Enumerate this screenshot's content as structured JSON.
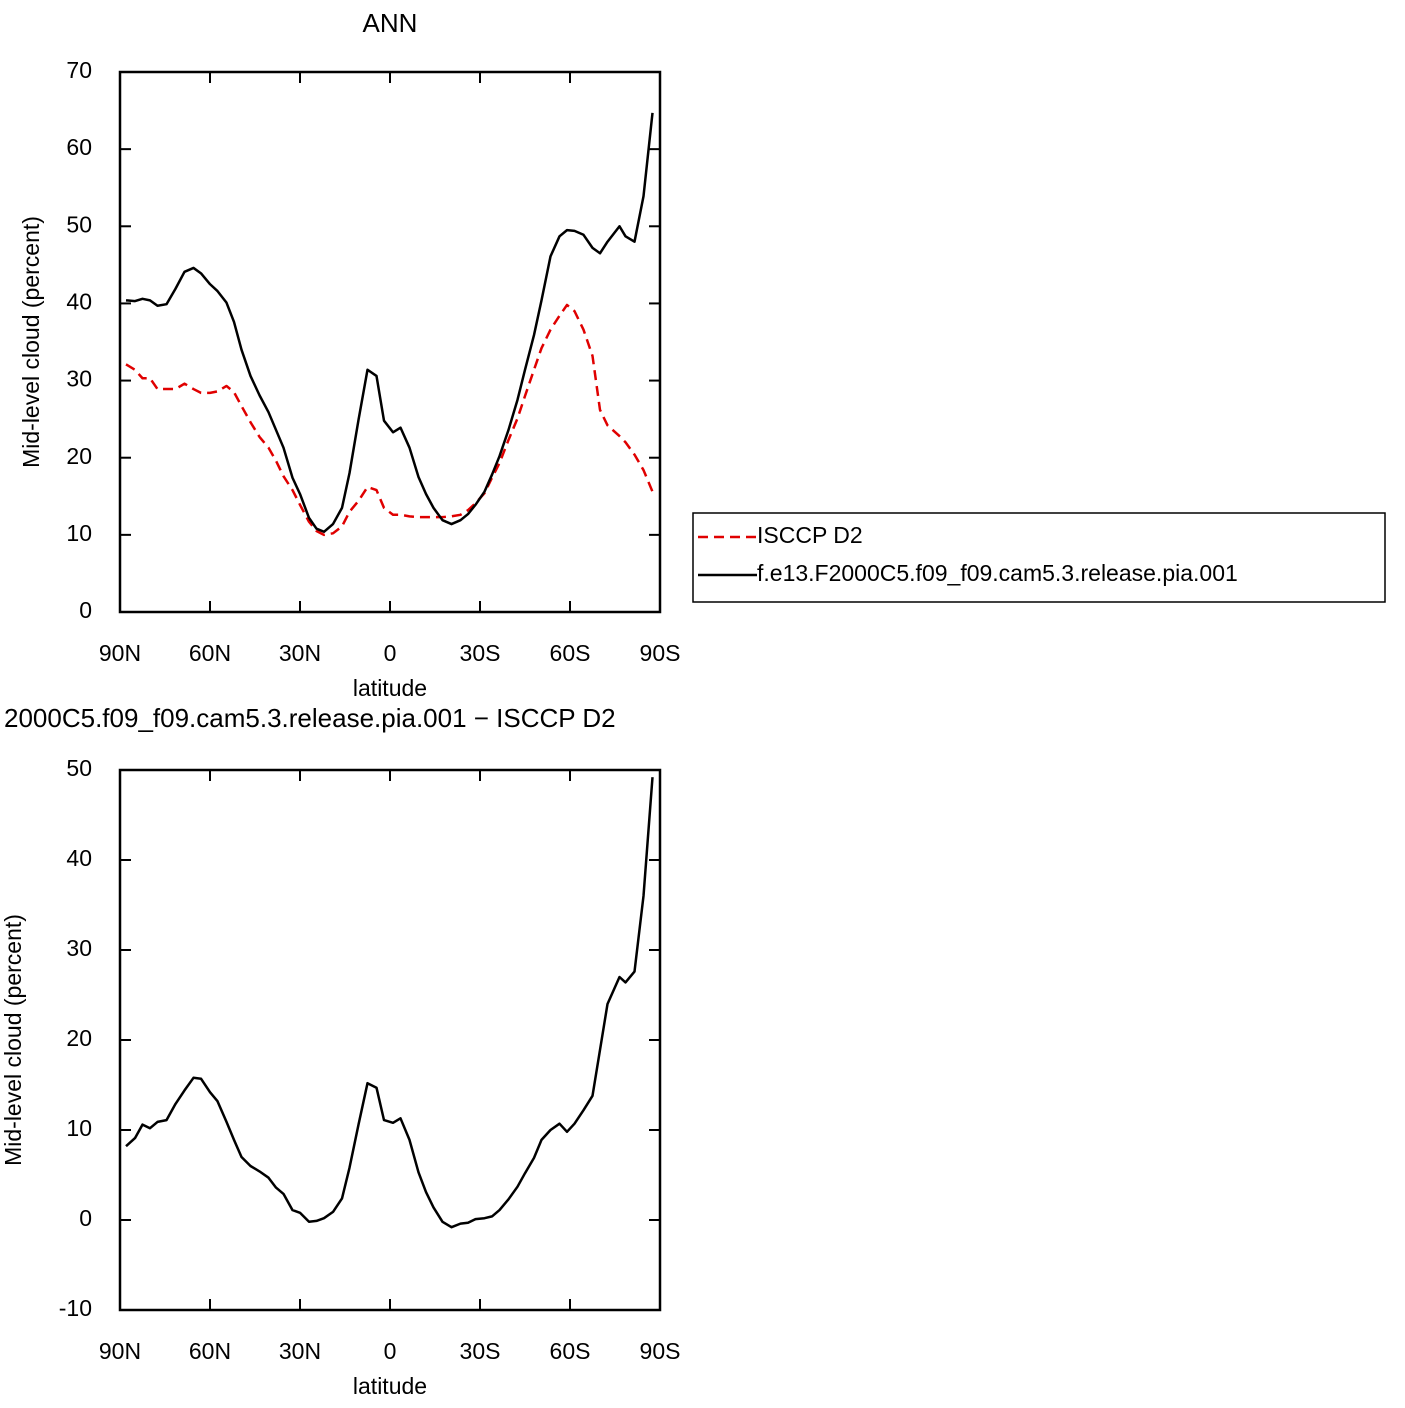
{
  "chart_data": [
    {
      "type": "line",
      "title": "ANN",
      "xlabel": "latitude",
      "ylabel": "Mid-level cloud (percent)",
      "x": [
        88,
        85,
        82.5,
        80,
        77.5,
        74.5,
        71.5,
        68.5,
        65.5,
        63,
        60,
        57.5,
        54.5,
        52,
        49.5,
        46.5,
        43.5,
        40.5,
        38,
        35.5,
        32.5,
        30,
        27,
        24.5,
        22,
        19,
        16,
        13.5,
        10.5,
        7.5,
        4.5,
        2,
        -1,
        -3.5,
        -6.5,
        -9.5,
        -12,
        -14.5,
        -17.5,
        -20.5,
        -23.5,
        -26,
        -28.5,
        -31.5,
        -34,
        -36.5,
        -39.5,
        -42.5,
        -45,
        -48,
        -50.5,
        -53.5,
        -56.5,
        -59,
        -61.5,
        -64.5,
        -67.5,
        -70,
        -72.5,
        -76.5,
        -78.5,
        -81.5,
        -84.5,
        -87.5
      ],
      "series": [
        {
          "name": "ISCCP D2",
          "color": "#e00000",
          "style": "dashed",
          "values": [
            32.1,
            31.4,
            30.3,
            30.3,
            28.9,
            28.9,
            28.9,
            29.6,
            28.9,
            28.4,
            28.4,
            28.6,
            29.3,
            28.5,
            26.7,
            24.6,
            22.7,
            21.3,
            19.6,
            17.6,
            15.8,
            13.9,
            11.7,
            10.5,
            10.0,
            10.2,
            11.1,
            13.0,
            14.4,
            16.2,
            15.8,
            13.5,
            12.6,
            12.6,
            12.4,
            12.3,
            12.3,
            12.3,
            12.3,
            12.4,
            12.6,
            13.2,
            14.1,
            15.4,
            17.4,
            19.3,
            22.3,
            25.1,
            28.0,
            31.4,
            34.2,
            36.6,
            38.4,
            39.8,
            39.0,
            36.6,
            33.2,
            26.2,
            24.2,
            22.8,
            22.0,
            20.4,
            18.4,
            15.6
          ]
        },
        {
          "name": "f.e13.F2000C5.f09_f09.cam5.3.release.pia.001",
          "color": "#000000",
          "style": "solid",
          "values": [
            40.4,
            40.3,
            40.6,
            40.4,
            39.7,
            39.9,
            41.9,
            44.1,
            44.6,
            43.9,
            42.5,
            41.6,
            40.1,
            37.6,
            34.0,
            30.6,
            28.1,
            25.9,
            23.6,
            21.3,
            17.4,
            15.3,
            12.2,
            10.8,
            10.4,
            11.4,
            13.5,
            18.0,
            24.9,
            31.4,
            30.6,
            24.8,
            23.3,
            23.9,
            21.3,
            17.5,
            15.3,
            13.5,
            11.9,
            11.4,
            11.9,
            12.7,
            13.9,
            15.6,
            17.8,
            20.2,
            23.6,
            27.5,
            31.4,
            35.9,
            40.4,
            46.1,
            48.7,
            49.5,
            49.4,
            48.9,
            47.2,
            46.5,
            48.0,
            50.0,
            48.7,
            48.0,
            53.9,
            64.7
          ]
        }
      ],
      "xlim": [
        90,
        -90
      ],
      "xticks": [
        {
          "value": 90,
          "label": "90N"
        },
        {
          "value": 60,
          "label": "60N"
        },
        {
          "value": 30,
          "label": "30N"
        },
        0,
        {
          "value": -30,
          "label": "30S"
        },
        {
          "value": -60,
          "label": "60S"
        },
        {
          "value": -90,
          "label": "90S"
        }
      ],
      "ylim": [
        0,
        70
      ],
      "yticks": [
        0,
        10,
        20,
        30,
        40,
        50,
        60,
        70
      ],
      "legend": "right"
    },
    {
      "type": "line",
      "title": "2000C5.f09_f09.cam5.3.release.pia.001 − ISCCP D2",
      "xlabel": "latitude",
      "ylabel": "Mid-level cloud (percent)",
      "x": [
        88,
        85,
        82.5,
        80,
        77.5,
        74.5,
        71.5,
        68.5,
        65.5,
        63,
        60,
        57.5,
        54.5,
        52,
        49.5,
        46.5,
        43.5,
        40.5,
        38,
        35.5,
        32.5,
        30,
        27,
        24.5,
        22,
        19,
        16,
        13.5,
        10.5,
        7.5,
        4.5,
        2,
        -1,
        -3.5,
        -6.5,
        -9.5,
        -12,
        -14.5,
        -17.5,
        -20.5,
        -23.5,
        -26,
        -28.5,
        -31.5,
        -34,
        -36.5,
        -39.5,
        -42.5,
        -45,
        -48,
        -50.5,
        -53.5,
        -56.5,
        -59,
        -61.5,
        -64.5,
        -67.5,
        -70,
        -72.5,
        -76.5,
        -78.5,
        -81.5,
        -84.5,
        -87.5
      ],
      "series": [
        {
          "color": "#000000",
          "style": "solid",
          "values": [
            8.2,
            9.1,
            10.6,
            10.2,
            10.9,
            11.1,
            12.9,
            14.4,
            15.8,
            15.7,
            14.2,
            13.2,
            10.9,
            8.9,
            7.0,
            6.0,
            5.4,
            4.7,
            3.6,
            2.9,
            1.1,
            0.8,
            -0.2,
            -0.1,
            0.2,
            0.9,
            2.4,
            5.8,
            10.6,
            15.2,
            14.7,
            11.1,
            10.8,
            11.3,
            8.9,
            5.3,
            3.1,
            1.4,
            -0.2,
            -0.8,
            -0.4,
            -0.3,
            0.1,
            0.2,
            0.4,
            1.1,
            2.3,
            3.7,
            5.2,
            6.9,
            8.9,
            10.0,
            10.7,
            9.8,
            10.7,
            12.2,
            13.8,
            18.9,
            24.0,
            27.0,
            26.4,
            27.6,
            36.0,
            49.2
          ]
        }
      ],
      "xlim": [
        90,
        -90
      ],
      "xticks": [
        {
          "value": 90,
          "label": "90N"
        },
        {
          "value": 60,
          "label": "60N"
        },
        {
          "value": 30,
          "label": "30N"
        },
        0,
        {
          "value": -30,
          "label": "30S"
        },
        {
          "value": -60,
          "label": "60S"
        },
        {
          "value": -90,
          "label": "90S"
        }
      ],
      "ylim": [
        -10,
        50
      ],
      "yticks": [
        -10,
        0,
        10,
        20,
        30,
        40,
        50
      ]
    }
  ]
}
